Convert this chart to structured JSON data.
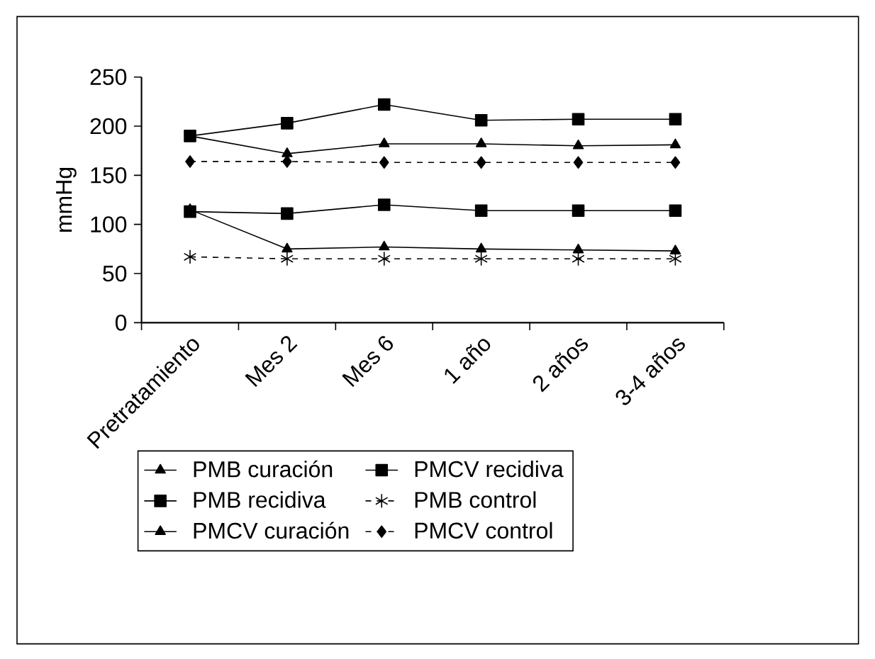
{
  "chart_data": {
    "type": "line",
    "ylabel": "mmHg",
    "categories": [
      "Pretratamiento",
      "Mes 2",
      "Mes 6",
      "1 año",
      "2 años",
      "3-4 años"
    ],
    "ylim": [
      0,
      250
    ],
    "yticks": [
      0,
      50,
      100,
      150,
      200,
      250
    ],
    "grid": false,
    "legend": "bottom",
    "series": [
      {
        "name": "PMB curación",
        "color": "#000000",
        "marker": "triangle",
        "line_style": "solid",
        "values": [
          115,
          75,
          77,
          75,
          74,
          73
        ]
      },
      {
        "name": "PMCV recidiva",
        "color": "#000000",
        "marker": "square",
        "line_style": "solid",
        "values": [
          190,
          203,
          222,
          206,
          207,
          207
        ]
      },
      {
        "name": "PMB recidiva",
        "color": "#000000",
        "marker": "square",
        "line_style": "solid",
        "values": [
          113,
          111,
          120,
          114,
          114,
          114
        ]
      },
      {
        "name": "PMB control",
        "color": "#000000",
        "marker": "cross",
        "line_style": "dashed",
        "values": [
          67,
          65,
          65,
          65,
          65,
          65
        ]
      },
      {
        "name": "PMCV curación",
        "color": "#000000",
        "marker": "triangle",
        "line_style": "solid",
        "values": [
          190,
          172,
          182,
          182,
          180,
          181
        ]
      },
      {
        "name": "PMCV control",
        "color": "#000000",
        "marker": "diamond",
        "line_style": "dashed",
        "values": [
          164,
          164,
          163,
          163,
          163,
          163
        ]
      }
    ]
  }
}
